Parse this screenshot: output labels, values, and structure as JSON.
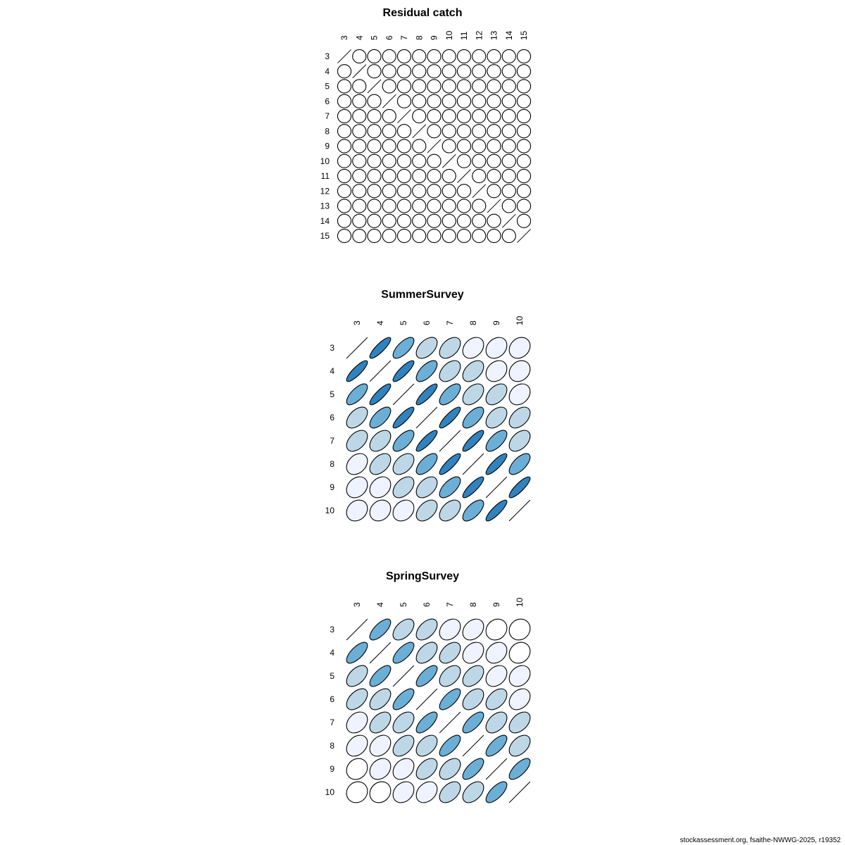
{
  "chart_data": [
    {
      "type": "heatmap",
      "title": "Residual catch",
      "labels": [
        "3",
        "4",
        "5",
        "6",
        "7",
        "8",
        "9",
        "10",
        "11",
        "12",
        "13",
        "14",
        "15"
      ],
      "matrix": "identity",
      "values": null
    },
    {
      "type": "heatmap",
      "title": "SummerSurvey",
      "labels": [
        "3",
        "4",
        "5",
        "6",
        "7",
        "8",
        "9",
        "10"
      ],
      "values": [
        [
          1,
          0.85,
          0.7,
          0.5,
          0.45,
          0.3,
          0.25,
          0.2
        ],
        [
          0.85,
          1,
          0.85,
          0.65,
          0.45,
          0.45,
          0.25,
          0.2
        ],
        [
          0.7,
          0.85,
          1,
          0.85,
          0.65,
          0.45,
          0.45,
          0.25
        ],
        [
          0.5,
          0.65,
          0.85,
          1,
          0.85,
          0.65,
          0.45,
          0.45
        ],
        [
          0.45,
          0.45,
          0.65,
          0.85,
          1,
          0.85,
          0.65,
          0.45
        ],
        [
          0.3,
          0.45,
          0.45,
          0.65,
          0.85,
          1,
          0.85,
          0.65
        ],
        [
          0.25,
          0.25,
          0.45,
          0.45,
          0.65,
          0.85,
          1,
          0.85
        ],
        [
          0.2,
          0.2,
          0.25,
          0.45,
          0.45,
          0.65,
          0.85,
          1
        ]
      ]
    },
    {
      "type": "heatmap",
      "title": "SpringSurvey",
      "labels": [
        "3",
        "4",
        "5",
        "6",
        "7",
        "8",
        "9",
        "10"
      ],
      "values": [
        [
          1,
          0.7,
          0.5,
          0.5,
          0.3,
          0.3,
          0.15,
          0.1
        ],
        [
          0.7,
          1,
          0.7,
          0.5,
          0.45,
          0.3,
          0.25,
          0.15
        ],
        [
          0.5,
          0.7,
          1,
          0.7,
          0.45,
          0.45,
          0.3,
          0.25
        ],
        [
          0.5,
          0.5,
          0.7,
          1,
          0.7,
          0.45,
          0.45,
          0.3
        ],
        [
          0.3,
          0.45,
          0.45,
          0.7,
          1,
          0.7,
          0.45,
          0.45
        ],
        [
          0.3,
          0.3,
          0.45,
          0.45,
          0.7,
          1,
          0.7,
          0.45
        ],
        [
          0.15,
          0.25,
          0.3,
          0.45,
          0.45,
          0.7,
          1,
          0.7
        ],
        [
          0.1,
          0.15,
          0.25,
          0.3,
          0.45,
          0.45,
          0.7,
          1
        ]
      ]
    }
  ],
  "color_scale": {
    "breaks": [
      0.2,
      0.4,
      0.6,
      0.8
    ],
    "colors": [
      "#ffffff",
      "#eff3ff",
      "#bdd7e7",
      "#6baed6",
      "#3182bd"
    ]
  },
  "footer": "stockassessment.org, fsaithe-NWWG-2025, r19352"
}
